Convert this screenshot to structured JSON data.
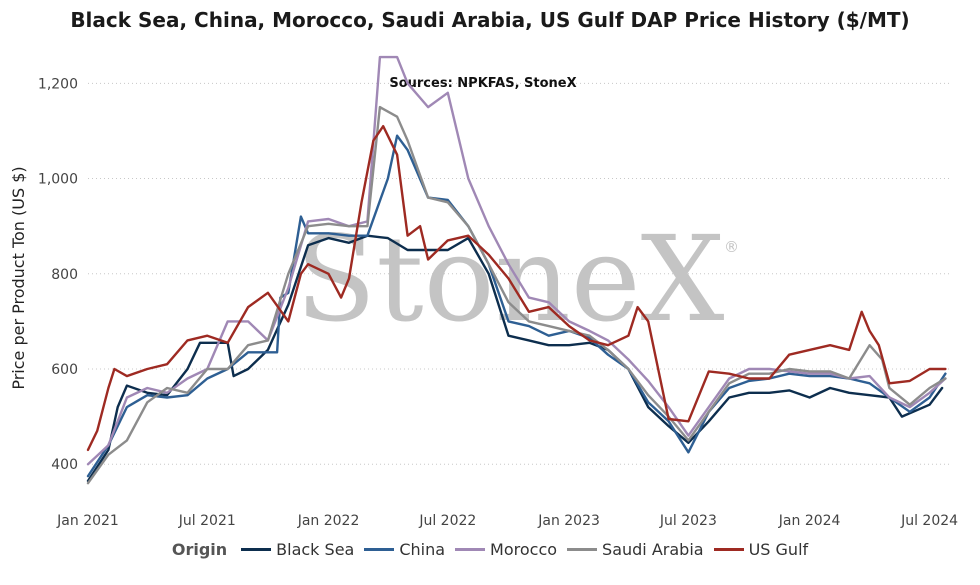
{
  "chart_data": {
    "type": "line",
    "title": "Black Sea, China, Morocco, Saudi Arabia, US Gulf DAP Price History ($/MT)",
    "subtitle": "Sources: NPKFAS, StoneX",
    "ylabel": "Price per Product Ton (US $)",
    "xlabel": "",
    "ylim": [
      350,
      1270
    ],
    "yticks": [
      400,
      600,
      800,
      1000,
      1200
    ],
    "ytick_labels": [
      "400",
      "600",
      "800",
      "1,000",
      "1,200"
    ],
    "xlim": [
      "2021-01-01",
      "2024-08-01"
    ],
    "xticks": [
      "2021-01-01",
      "2021-07-01",
      "2022-01-01",
      "2022-07-01",
      "2023-01-01",
      "2023-07-01",
      "2024-01-01",
      "2024-07-01"
    ],
    "xtick_labels": [
      "Jan 2021",
      "Jul 2021",
      "Jan 2022",
      "Jul 2022",
      "Jan 2023",
      "Jul 2023",
      "Jan 2024",
      "Jul 2024"
    ],
    "grid": "horizontal dotted",
    "legend_placement": "bottom",
    "legend_title": "Origin",
    "watermark": "StoneX",
    "watermark_mark": "®",
    "series": [
      {
        "name": "Black Sea",
        "color": "#0d2e4e",
        "points": [
          [
            "2021-01-01",
            365
          ],
          [
            "2021-02-01",
            430
          ],
          [
            "2021-02-15",
            520
          ],
          [
            "2021-03-01",
            565
          ],
          [
            "2021-04-01",
            550
          ],
          [
            "2021-05-01",
            545
          ],
          [
            "2021-06-01",
            600
          ],
          [
            "2021-06-20",
            655
          ],
          [
            "2021-08-01",
            655
          ],
          [
            "2021-08-10",
            585
          ],
          [
            "2021-09-01",
            600
          ],
          [
            "2021-10-01",
            640
          ],
          [
            "2021-11-01",
            735
          ],
          [
            "2021-12-01",
            860
          ],
          [
            "2022-01-01",
            875
          ],
          [
            "2022-02-01",
            865
          ],
          [
            "2022-03-01",
            880
          ],
          [
            "2022-04-01",
            875
          ],
          [
            "2022-05-01",
            850
          ],
          [
            "2022-06-01",
            850
          ],
          [
            "2022-07-01",
            850
          ],
          [
            "2022-08-01",
            875
          ],
          [
            "2022-09-01",
            800
          ],
          [
            "2022-10-01",
            670
          ],
          [
            "2022-11-01",
            660
          ],
          [
            "2022-12-01",
            650
          ],
          [
            "2023-01-01",
            650
          ],
          [
            "2023-02-01",
            655
          ],
          [
            "2023-03-01",
            640
          ],
          [
            "2023-04-01",
            600
          ],
          [
            "2023-05-01",
            520
          ],
          [
            "2023-06-01",
            480
          ],
          [
            "2023-07-01",
            445
          ],
          [
            "2023-08-01",
            490
          ],
          [
            "2023-09-01",
            540
          ],
          [
            "2023-10-01",
            550
          ],
          [
            "2023-11-01",
            550
          ],
          [
            "2023-12-01",
            555
          ],
          [
            "2024-01-01",
            540
          ],
          [
            "2024-02-01",
            560
          ],
          [
            "2024-03-01",
            550
          ],
          [
            "2024-04-01",
            545
          ],
          [
            "2024-05-01",
            540
          ],
          [
            "2024-05-20",
            500
          ],
          [
            "2024-07-01",
            525
          ],
          [
            "2024-07-20",
            560
          ]
        ]
      },
      {
        "name": "China",
        "color": "#2e5f93",
        "points": [
          [
            "2021-01-01",
            375
          ],
          [
            "2021-02-01",
            440
          ],
          [
            "2021-03-01",
            520
          ],
          [
            "2021-04-01",
            545
          ],
          [
            "2021-05-01",
            540
          ],
          [
            "2021-06-01",
            545
          ],
          [
            "2021-07-01",
            580
          ],
          [
            "2021-08-01",
            600
          ],
          [
            "2021-09-01",
            635
          ],
          [
            "2021-10-15",
            635
          ],
          [
            "2021-10-20",
            750
          ],
          [
            "2021-11-01",
            760
          ],
          [
            "2021-11-20",
            920
          ],
          [
            "2021-12-01",
            885
          ],
          [
            "2022-01-01",
            885
          ],
          [
            "2022-02-01",
            880
          ],
          [
            "2022-03-01",
            880
          ],
          [
            "2022-04-01",
            1000
          ],
          [
            "2022-04-15",
            1090
          ],
          [
            "2022-05-01",
            1060
          ],
          [
            "2022-06-01",
            960
          ],
          [
            "2022-07-01",
            955
          ],
          [
            "2022-08-01",
            900
          ],
          [
            "2022-09-01",
            820
          ],
          [
            "2022-10-01",
            700
          ],
          [
            "2022-11-01",
            690
          ],
          [
            "2022-12-01",
            670
          ],
          [
            "2023-01-01",
            680
          ],
          [
            "2023-02-01",
            665
          ],
          [
            "2023-03-01",
            630
          ],
          [
            "2023-04-01",
            600
          ],
          [
            "2023-05-01",
            530
          ],
          [
            "2023-06-01",
            490
          ],
          [
            "2023-07-01",
            425
          ],
          [
            "2023-08-01",
            510
          ],
          [
            "2023-09-01",
            560
          ],
          [
            "2023-10-01",
            575
          ],
          [
            "2023-11-01",
            580
          ],
          [
            "2023-12-01",
            590
          ],
          [
            "2024-01-01",
            585
          ],
          [
            "2024-02-01",
            585
          ],
          [
            "2024-03-01",
            580
          ],
          [
            "2024-04-01",
            570
          ],
          [
            "2024-05-01",
            540
          ],
          [
            "2024-06-01",
            510
          ],
          [
            "2024-07-01",
            540
          ],
          [
            "2024-07-25",
            590
          ]
        ]
      },
      {
        "name": "Morocco",
        "color": "#a088b5",
        "points": [
          [
            "2021-01-01",
            400
          ],
          [
            "2021-02-01",
            440
          ],
          [
            "2021-03-01",
            540
          ],
          [
            "2021-04-01",
            560
          ],
          [
            "2021-05-01",
            550
          ],
          [
            "2021-06-01",
            580
          ],
          [
            "2021-07-01",
            600
          ],
          [
            "2021-08-01",
            700
          ],
          [
            "2021-09-01",
            700
          ],
          [
            "2021-10-01",
            660
          ],
          [
            "2021-11-01",
            770
          ],
          [
            "2021-12-01",
            910
          ],
          [
            "2022-01-01",
            915
          ],
          [
            "2022-02-01",
            900
          ],
          [
            "2022-03-01",
            910
          ],
          [
            "2022-03-20",
            1255
          ],
          [
            "2022-04-15",
            1255
          ],
          [
            "2022-05-01",
            1200
          ],
          [
            "2022-06-01",
            1150
          ],
          [
            "2022-07-01",
            1180
          ],
          [
            "2022-08-01",
            1000
          ],
          [
            "2022-09-01",
            900
          ],
          [
            "2022-10-01",
            820
          ],
          [
            "2022-11-01",
            750
          ],
          [
            "2022-12-01",
            740
          ],
          [
            "2023-01-01",
            700
          ],
          [
            "2023-02-01",
            680
          ],
          [
            "2023-03-01",
            660
          ],
          [
            "2023-04-01",
            620
          ],
          [
            "2023-05-01",
            575
          ],
          [
            "2023-06-01",
            520
          ],
          [
            "2023-07-01",
            460
          ],
          [
            "2023-08-01",
            520
          ],
          [
            "2023-09-01",
            580
          ],
          [
            "2023-10-01",
            600
          ],
          [
            "2023-11-01",
            600
          ],
          [
            "2023-12-01",
            595
          ],
          [
            "2024-01-01",
            590
          ],
          [
            "2024-02-01",
            590
          ],
          [
            "2024-03-01",
            580
          ],
          [
            "2024-04-01",
            585
          ],
          [
            "2024-05-01",
            540
          ],
          [
            "2024-06-01",
            520
          ],
          [
            "2024-07-01",
            550
          ],
          [
            "2024-07-25",
            580
          ]
        ]
      },
      {
        "name": "Saudi Arabia",
        "color": "#8c8c8c",
        "points": [
          [
            "2021-01-01",
            360
          ],
          [
            "2021-02-01",
            420
          ],
          [
            "2021-03-01",
            450
          ],
          [
            "2021-04-01",
            530
          ],
          [
            "2021-05-01",
            560
          ],
          [
            "2021-06-01",
            550
          ],
          [
            "2021-07-01",
            600
          ],
          [
            "2021-08-01",
            600
          ],
          [
            "2021-09-01",
            650
          ],
          [
            "2021-10-01",
            660
          ],
          [
            "2021-11-01",
            800
          ],
          [
            "2021-12-01",
            900
          ],
          [
            "2022-01-01",
            905
          ],
          [
            "2022-02-01",
            900
          ],
          [
            "2022-03-01",
            900
          ],
          [
            "2022-03-20",
            1150
          ],
          [
            "2022-04-15",
            1130
          ],
          [
            "2022-05-01",
            1080
          ],
          [
            "2022-06-01",
            960
          ],
          [
            "2022-07-01",
            950
          ],
          [
            "2022-08-01",
            900
          ],
          [
            "2022-09-01",
            820
          ],
          [
            "2022-10-01",
            740
          ],
          [
            "2022-11-01",
            700
          ],
          [
            "2022-12-01",
            690
          ],
          [
            "2023-01-01",
            680
          ],
          [
            "2023-02-01",
            670
          ],
          [
            "2023-03-01",
            640
          ],
          [
            "2023-04-01",
            600
          ],
          [
            "2023-05-01",
            545
          ],
          [
            "2023-06-01",
            500
          ],
          [
            "2023-07-01",
            450
          ],
          [
            "2023-08-01",
            510
          ],
          [
            "2023-09-01",
            570
          ],
          [
            "2023-10-01",
            590
          ],
          [
            "2023-11-01",
            590
          ],
          [
            "2023-12-01",
            600
          ],
          [
            "2024-01-01",
            595
          ],
          [
            "2024-02-01",
            595
          ],
          [
            "2024-03-01",
            580
          ],
          [
            "2024-04-01",
            650
          ],
          [
            "2024-04-20",
            620
          ],
          [
            "2024-05-01",
            560
          ],
          [
            "2024-06-01",
            525
          ],
          [
            "2024-07-01",
            560
          ],
          [
            "2024-07-25",
            580
          ]
        ]
      },
      {
        "name": "US Gulf",
        "color": "#9e2a22",
        "points": [
          [
            "2021-01-01",
            430
          ],
          [
            "2021-01-15",
            470
          ],
          [
            "2021-02-01",
            560
          ],
          [
            "2021-02-10",
            600
          ],
          [
            "2021-03-01",
            585
          ],
          [
            "2021-04-01",
            600
          ],
          [
            "2021-05-01",
            610
          ],
          [
            "2021-06-01",
            660
          ],
          [
            "2021-07-01",
            670
          ],
          [
            "2021-08-01",
            655
          ],
          [
            "2021-09-01",
            730
          ],
          [
            "2021-10-01",
            760
          ],
          [
            "2021-11-01",
            700
          ],
          [
            "2021-11-20",
            800
          ],
          [
            "2021-12-01",
            820
          ],
          [
            "2022-01-01",
            800
          ],
          [
            "2022-01-20",
            750
          ],
          [
            "2022-02-01",
            790
          ],
          [
            "2022-02-20",
            950
          ],
          [
            "2022-03-10",
            1080
          ],
          [
            "2022-03-25",
            1110
          ],
          [
            "2022-04-15",
            1050
          ],
          [
            "2022-05-01",
            880
          ],
          [
            "2022-05-20",
            900
          ],
          [
            "2022-06-01",
            830
          ],
          [
            "2022-07-01",
            870
          ],
          [
            "2022-08-01",
            880
          ],
          [
            "2022-09-01",
            840
          ],
          [
            "2022-10-01",
            790
          ],
          [
            "2022-11-01",
            720
          ],
          [
            "2022-12-01",
            730
          ],
          [
            "2023-01-01",
            690
          ],
          [
            "2023-02-01",
            660
          ],
          [
            "2023-03-01",
            650
          ],
          [
            "2023-04-01",
            670
          ],
          [
            "2023-04-15",
            730
          ],
          [
            "2023-05-01",
            700
          ],
          [
            "2023-06-01",
            495
          ],
          [
            "2023-07-01",
            490
          ],
          [
            "2023-08-01",
            595
          ],
          [
            "2023-09-01",
            590
          ],
          [
            "2023-10-01",
            580
          ],
          [
            "2023-11-01",
            580
          ],
          [
            "2023-12-01",
            630
          ],
          [
            "2024-01-01",
            640
          ],
          [
            "2024-02-01",
            650
          ],
          [
            "2024-03-01",
            640
          ],
          [
            "2024-03-20",
            720
          ],
          [
            "2024-04-01",
            680
          ],
          [
            "2024-04-15",
            650
          ],
          [
            "2024-05-01",
            570
          ],
          [
            "2024-06-01",
            575
          ],
          [
            "2024-07-01",
            600
          ],
          [
            "2024-07-25",
            600
          ]
        ]
      }
    ]
  }
}
